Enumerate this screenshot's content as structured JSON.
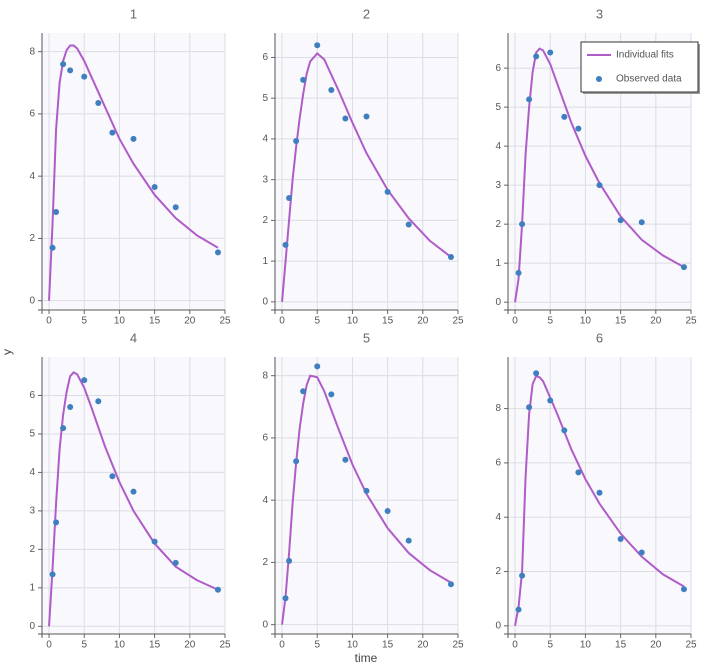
{
  "xlabel": "time",
  "ylabel": "y",
  "chart_data": [
    {
      "type": "scatter",
      "title": "1",
      "xlim": [
        -1,
        25
      ],
      "xticks": [
        0,
        5,
        10,
        15,
        20,
        25
      ],
      "ylim": [
        -0.3,
        8.6
      ],
      "yticks": [
        0,
        2,
        4,
        6,
        8
      ],
      "grid": true,
      "series": [
        {
          "name": "Individual fits",
          "type": "line",
          "color": "#b05cc8",
          "x": [
            0,
            0.5,
            1,
            1.5,
            2,
            2.5,
            3,
            3.5,
            4,
            5,
            6,
            8,
            10,
            12,
            15,
            18,
            21,
            24
          ],
          "values": [
            0,
            2.5,
            5.5,
            7.0,
            7.7,
            8.05,
            8.2,
            8.2,
            8.1,
            7.7,
            7.2,
            6.2,
            5.2,
            4.4,
            3.4,
            2.65,
            2.1,
            1.7
          ]
        },
        {
          "name": "Observed data",
          "color": "#3f7fbf",
          "x": [
            0.5,
            1,
            2,
            3,
            5,
            7,
            9,
            12,
            15,
            18,
            24
          ],
          "values": [
            1.7,
            2.85,
            7.6,
            7.4,
            7.2,
            6.35,
            5.4,
            5.2,
            3.65,
            3.0,
            1.55
          ]
        }
      ]
    },
    {
      "type": "scatter",
      "title": "2",
      "xlim": [
        -1,
        25
      ],
      "xticks": [
        0,
        5,
        10,
        15,
        20,
        25
      ],
      "ylim": [
        -0.2,
        6.6
      ],
      "yticks": [
        0,
        1,
        2,
        3,
        4,
        5,
        6
      ],
      "grid": true,
      "series": [
        {
          "name": "Individual fits",
          "type": "line",
          "color": "#b05cc8",
          "x": [
            0,
            0.5,
            1,
            1.5,
            2,
            2.5,
            3,
            3.5,
            4,
            5,
            6,
            8,
            10,
            12,
            15,
            18,
            21,
            24
          ],
          "values": [
            0,
            1.0,
            2.0,
            3.0,
            3.8,
            4.5,
            5.1,
            5.6,
            5.9,
            6.1,
            5.95,
            5.2,
            4.4,
            3.65,
            2.75,
            2.05,
            1.5,
            1.1
          ]
        },
        {
          "name": "Observed data",
          "color": "#3f7fbf",
          "x": [
            0.5,
            1,
            2,
            3,
            5,
            7,
            9,
            12,
            15,
            18,
            24
          ],
          "values": [
            1.4,
            2.55,
            3.95,
            5.45,
            6.3,
            5.2,
            4.5,
            4.55,
            2.7,
            1.9,
            1.1
          ]
        }
      ]
    },
    {
      "type": "scatter",
      "title": "3",
      "xlim": [
        -1,
        25
      ],
      "xticks": [
        0,
        5,
        10,
        15,
        20,
        25
      ],
      "ylim": [
        -0.2,
        6.9
      ],
      "yticks": [
        0,
        1,
        2,
        3,
        4,
        5,
        6
      ],
      "grid": true,
      "legend": "top-right",
      "series": [
        {
          "name": "Individual fits",
          "type": "line",
          "color": "#b05cc8",
          "x": [
            0,
            0.5,
            1,
            1.5,
            2,
            2.5,
            3,
            3.5,
            4,
            5,
            6,
            8,
            10,
            12,
            15,
            18,
            21,
            24
          ],
          "values": [
            0,
            0.6,
            2.0,
            3.8,
            5.0,
            5.9,
            6.4,
            6.5,
            6.45,
            6.1,
            5.6,
            4.6,
            3.75,
            3.05,
            2.2,
            1.6,
            1.2,
            0.9
          ]
        },
        {
          "name": "Observed data",
          "color": "#3f7fbf",
          "x": [
            0.5,
            1,
            2,
            3,
            5,
            7,
            9,
            12,
            15,
            18,
            24
          ],
          "values": [
            0.75,
            2.0,
            5.2,
            6.3,
            6.4,
            4.75,
            4.45,
            3.0,
            2.1,
            2.05,
            0.9
          ]
        }
      ]
    },
    {
      "type": "scatter",
      "title": "4",
      "xlim": [
        -1,
        25
      ],
      "xticks": [
        0,
        5,
        10,
        15,
        20,
        25
      ],
      "ylim": [
        -0.2,
        7.0
      ],
      "yticks": [
        0,
        1,
        2,
        3,
        4,
        5,
        6
      ],
      "grid": true,
      "series": [
        {
          "name": "Individual fits",
          "type": "line",
          "color": "#b05cc8",
          "x": [
            0,
            0.5,
            1,
            1.5,
            2,
            2.5,
            3,
            3.5,
            4,
            5,
            6,
            8,
            10,
            12,
            15,
            18,
            21,
            24
          ],
          "values": [
            0,
            1.5,
            3.2,
            4.6,
            5.5,
            6.1,
            6.5,
            6.6,
            6.55,
            6.2,
            5.7,
            4.65,
            3.75,
            3.0,
            2.15,
            1.55,
            1.2,
            0.95
          ]
        },
        {
          "name": "Observed data",
          "color": "#3f7fbf",
          "x": [
            0.5,
            1,
            2,
            3,
            5,
            7,
            9,
            12,
            15,
            18,
            24
          ],
          "values": [
            1.35,
            2.7,
            5.15,
            5.7,
            6.4,
            5.85,
            3.9,
            3.5,
            2.2,
            1.65,
            0.95
          ]
        }
      ]
    },
    {
      "type": "scatter",
      "title": "5",
      "xlim": [
        -1,
        25
      ],
      "xticks": [
        0,
        5,
        10,
        15,
        20,
        25
      ],
      "ylim": [
        -0.3,
        8.6
      ],
      "yticks": [
        0,
        2,
        4,
        6,
        8
      ],
      "grid": true,
      "series": [
        {
          "name": "Individual fits",
          "type": "line",
          "color": "#b05cc8",
          "x": [
            0,
            0.5,
            1,
            1.5,
            2,
            2.5,
            3,
            3.5,
            4,
            5,
            6,
            8,
            10,
            12,
            15,
            18,
            21,
            24
          ],
          "values": [
            0,
            0.9,
            2.3,
            3.9,
            5.2,
            6.3,
            7.1,
            7.7,
            8.0,
            7.95,
            7.5,
            6.3,
            5.15,
            4.2,
            3.1,
            2.3,
            1.75,
            1.35
          ]
        },
        {
          "name": "Observed data",
          "color": "#3f7fbf",
          "x": [
            0.5,
            1,
            2,
            3,
            5,
            7,
            9,
            12,
            15,
            18,
            24
          ],
          "values": [
            0.85,
            2.05,
            5.25,
            7.5,
            8.3,
            7.4,
            5.3,
            4.3,
            3.65,
            2.7,
            1.3
          ]
        }
      ]
    },
    {
      "type": "scatter",
      "title": "6",
      "xlim": [
        -1,
        25
      ],
      "xticks": [
        0,
        5,
        10,
        15,
        20,
        25
      ],
      "ylim": [
        -0.3,
        9.9
      ],
      "yticks": [
        0,
        2,
        4,
        6,
        8
      ],
      "grid": true,
      "series": [
        {
          "name": "Individual fits",
          "type": "line",
          "color": "#b05cc8",
          "x": [
            0,
            0.5,
            1,
            1.5,
            2,
            2.5,
            3,
            3.5,
            4,
            5,
            6,
            8,
            10,
            12,
            15,
            18,
            21,
            24
          ],
          "values": [
            0,
            0.7,
            2.0,
            5.5,
            7.8,
            8.9,
            9.2,
            9.15,
            9.0,
            8.4,
            7.8,
            6.5,
            5.4,
            4.5,
            3.4,
            2.55,
            1.9,
            1.45
          ]
        },
        {
          "name": "Observed data",
          "color": "#3f7fbf",
          "x": [
            0.5,
            1,
            2,
            3,
            5,
            7,
            9,
            12,
            15,
            18,
            24
          ],
          "values": [
            0.6,
            1.85,
            8.05,
            9.3,
            8.3,
            7.2,
            5.65,
            4.9,
            3.2,
            2.7,
            1.35
          ]
        }
      ]
    }
  ]
}
